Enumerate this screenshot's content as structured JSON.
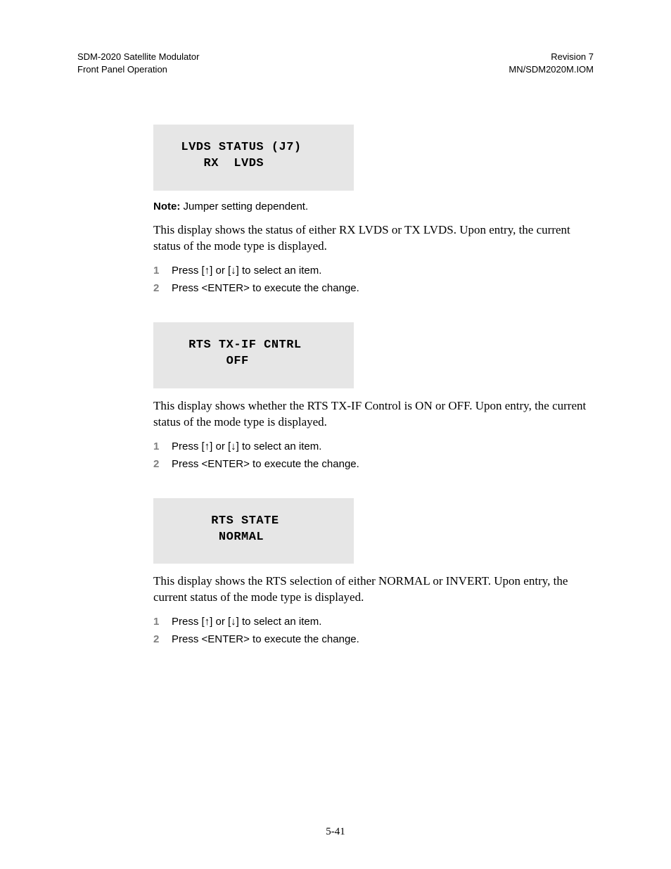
{
  "header": {
    "left_line1": "SDM-2020 Satellite Modulator",
    "left_line2": "Front Panel Operation",
    "right_line1": "Revision 7",
    "right_line2": "MN/SDM2020M.IOM"
  },
  "sections": [
    {
      "lcd_line1": "  LVDS STATUS (J7)",
      "lcd_line2": "     RX  LVDS",
      "note_label": "Note:",
      "note_text": " Jumper setting dependent.",
      "para": "This display shows the status of  either RX LVDS or TX LVDS. Upon entry, the current status of the mode type is displayed.",
      "steps": [
        "Press [↑] or [↓] to select an item.",
        "Press <ENTER> to execute the change."
      ]
    },
    {
      "lcd_line1": "   RTS TX-IF CNTRL",
      "lcd_line2": "        OFF",
      "para": "This display shows whether the RTS TX-IF Control is ON or OFF. Upon entry, the current status of the mode type is displayed.",
      "steps": [
        "Press [↑] or [↓] to select an item.",
        "Press <ENTER> to execute the change."
      ]
    },
    {
      "lcd_line1": "      RTS STATE",
      "lcd_line2": "       NORMAL",
      "para": "This display shows the RTS selection of either NORMAL or INVERT. Upon entry, the current status of the mode type is displayed.",
      "steps": [
        "Press [↑] or [↓] to select an item.",
        "Press <ENTER> to execute the change."
      ]
    }
  ],
  "footer": "5-41",
  "colors": {
    "page_bg": "#ffffff",
    "text": "#000000",
    "lcd_bg": "#e6e6e6",
    "step_num": "#808080"
  },
  "fonts": {
    "body_serif": "Times New Roman",
    "sans": "Arial",
    "mono": "Courier New"
  }
}
